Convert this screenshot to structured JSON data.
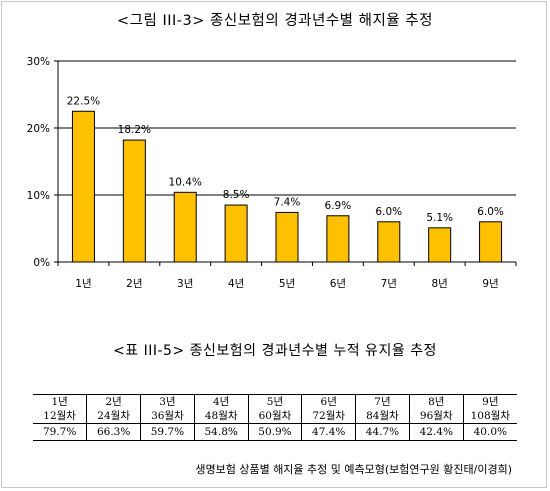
{
  "figure_title": "<그림 III-3> 종신보험의 경과년수별 해지율 추정",
  "chart_data": {
    "type": "bar",
    "categories": [
      "1년",
      "2년",
      "3년",
      "4년",
      "5년",
      "6년",
      "7년",
      "8년",
      "9년"
    ],
    "values": [
      22.5,
      18.2,
      10.4,
      8.5,
      7.4,
      6.9,
      6.0,
      5.1,
      6.0
    ],
    "data_labels": [
      "22.5%",
      "18.2%",
      "10.4%",
      "8.5%",
      "7.4%",
      "6.9%",
      "6.0%",
      "5.1%",
      "6.0%"
    ],
    "y_ticks": [
      0,
      10,
      20,
      30
    ],
    "y_tick_labels": [
      "0%",
      "10%",
      "20%",
      "30%"
    ],
    "ylim": [
      0,
      30
    ],
    "grid": true,
    "bar_color": "#FFC000",
    "bar_edge_color": "#000000"
  },
  "table_title": "<표 III-5> 종신보험의 경과년수별 누적 유지율 추정",
  "table": {
    "years": [
      "1년",
      "2년",
      "3년",
      "4년",
      "5년",
      "6년",
      "7년",
      "8년",
      "9년"
    ],
    "months": [
      "12월차",
      "24월차",
      "36월차",
      "48월차",
      "60월차",
      "72월차",
      "84월차",
      "96월차",
      "108월차"
    ],
    "rates": [
      "79.7%",
      "66.3%",
      "59.7%",
      "54.8%",
      "50.9%",
      "47.4%",
      "44.7%",
      "42.4%",
      "40.0%"
    ]
  },
  "source": "생명보험 상품별 해지율 추정 및 예측모형(보험연구원 황진태/이경희)"
}
